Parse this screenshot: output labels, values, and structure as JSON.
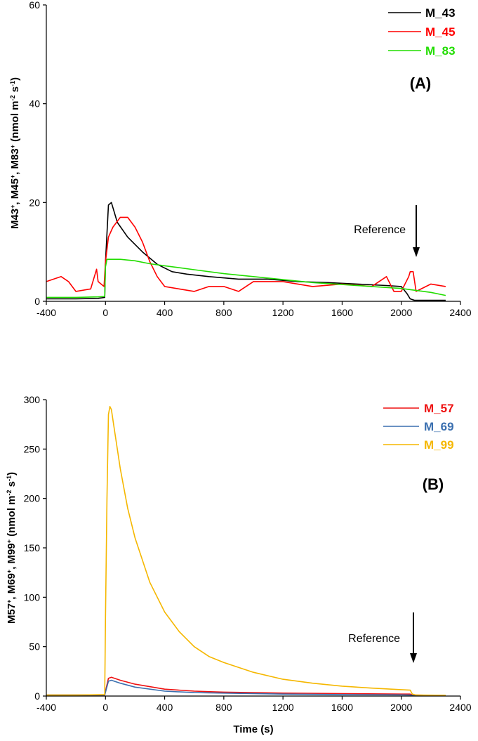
{
  "chart_data": [
    {
      "type": "line",
      "panel_label": "(A)",
      "xlabel": "",
      "ylabel": "M43+, M45+, M83+ (nmol m-2 s-1)",
      "ylabel_parts": {
        "species": [
          "M43",
          "M45",
          "M83"
        ],
        "unit_base": "nmol m",
        "unit_exp1": "-2",
        "unit_mid": " s",
        "unit_exp2": "-1"
      },
      "xlim": [
        -400,
        2400
      ],
      "ylim": [
        0,
        60
      ],
      "xticks": [
        -400,
        0,
        400,
        800,
        1200,
        1600,
        2000,
        2400
      ],
      "yticks": [
        0,
        20,
        40,
        60
      ],
      "grid": false,
      "legend_position": "top-right",
      "annotation": {
        "text": "Reference",
        "x": 2080
      },
      "series": [
        {
          "name": "M_43",
          "color": "#000000",
          "x": [
            -400,
            -200,
            -50,
            -5,
            0,
            20,
            40,
            80,
            150,
            250,
            350,
            450,
            550,
            700,
            900,
            1100,
            1300,
            1500,
            1700,
            1900,
            2000,
            2040,
            2060,
            2090,
            2300
          ],
          "y": [
            0.5,
            0.5,
            0.6,
            0.8,
            8,
            19.5,
            20,
            16,
            13,
            10,
            7.5,
            6,
            5.5,
            5,
            4.5,
            4.5,
            4,
            3.8,
            3.5,
            3.2,
            3,
            1.5,
            0.5,
            0.2,
            0.2
          ]
        },
        {
          "name": "M_45",
          "color": "#ff0000",
          "x": [
            -400,
            -300,
            -250,
            -200,
            -100,
            -60,
            -50,
            -10,
            0,
            20,
            50,
            100,
            150,
            200,
            250,
            300,
            350,
            400,
            500,
            600,
            700,
            800,
            900,
            1000,
            1200,
            1400,
            1600,
            1800,
            1900,
            1950,
            2000,
            2050,
            2060,
            2080,
            2100,
            2200,
            2300
          ],
          "y": [
            4,
            5,
            4,
            2,
            2.5,
            6.5,
            4,
            3,
            8,
            13,
            15,
            17,
            17,
            15,
            12,
            8,
            5,
            3,
            2.5,
            2,
            3,
            3,
            2,
            4,
            4,
            3,
            3.5,
            3,
            5,
            2,
            2,
            5,
            6,
            6,
            2,
            3.5,
            3
          ]
        },
        {
          "name": "M_83",
          "color": "#22dd00",
          "x": [
            -400,
            -200,
            -50,
            -5,
            0,
            10,
            30,
            100,
            200,
            300,
            400,
            600,
            800,
            1000,
            1200,
            1400,
            1600,
            1800,
            2000,
            2200,
            2300
          ],
          "y": [
            0.8,
            0.8,
            0.9,
            1,
            7,
            8.5,
            8.5,
            8.5,
            8.2,
            7.6,
            7.2,
            6.4,
            5.6,
            5,
            4.4,
            3.8,
            3.4,
            3,
            2.6,
            1.8,
            1.2
          ]
        }
      ]
    },
    {
      "type": "line",
      "panel_label": "(B)",
      "xlabel": "Time (s)",
      "ylabel": "M57+, M69+, M99+ (nmol m-2 s-1)",
      "ylabel_parts": {
        "species": [
          "M57",
          "M69",
          "M99"
        ],
        "unit_base": "nmol m",
        "unit_exp1": "-2",
        "unit_mid": " s",
        "unit_exp2": "-1"
      },
      "xlim": [
        -400,
        2400
      ],
      "ylim": [
        0,
        300
      ],
      "xticks": [
        -400,
        0,
        400,
        800,
        1200,
        1600,
        2000,
        2400
      ],
      "yticks": [
        0,
        50,
        100,
        150,
        200,
        250,
        300
      ],
      "grid": false,
      "legend_position": "top-right",
      "annotation": {
        "text": "Reference",
        "x": 2080
      },
      "series": [
        {
          "name": "M_57",
          "color": "#ee1111",
          "x": [
            -400,
            -5,
            0,
            20,
            40,
            100,
            200,
            400,
            600,
            800,
            1200,
            1600,
            2000,
            2060,
            2080,
            2300
          ],
          "y": [
            1,
            1,
            5,
            18,
            19,
            16,
            12,
            7,
            5,
            4,
            3,
            2.5,
            2,
            2,
            1,
            0.5
          ]
        },
        {
          "name": "M_69",
          "color": "#3a6faf",
          "x": [
            -400,
            -5,
            0,
            20,
            40,
            100,
            200,
            400,
            600,
            800,
            1200,
            1600,
            2000,
            2060,
            2080,
            2300
          ],
          "y": [
            1,
            1,
            4,
            15,
            16,
            13,
            9,
            5,
            3.5,
            3,
            2,
            1.5,
            1.2,
            1,
            0.5,
            0.3
          ]
        },
        {
          "name": "M_99",
          "color": "#f5b700",
          "x": [
            -400,
            -200,
            -5,
            0,
            10,
            20,
            30,
            40,
            60,
            100,
            150,
            200,
            300,
            400,
            500,
            600,
            700,
            800,
            1000,
            1200,
            1400,
            1600,
            1800,
            2000,
            2060,
            2075,
            2100,
            2300
          ],
          "y": [
            1,
            1,
            1.5,
            80,
            200,
            285,
            293,
            290,
            270,
            230,
            190,
            160,
            115,
            85,
            65,
            50,
            40,
            34,
            24,
            17,
            13,
            10,
            8,
            6.5,
            6,
            2,
            1,
            0.8
          ]
        }
      ]
    }
  ]
}
